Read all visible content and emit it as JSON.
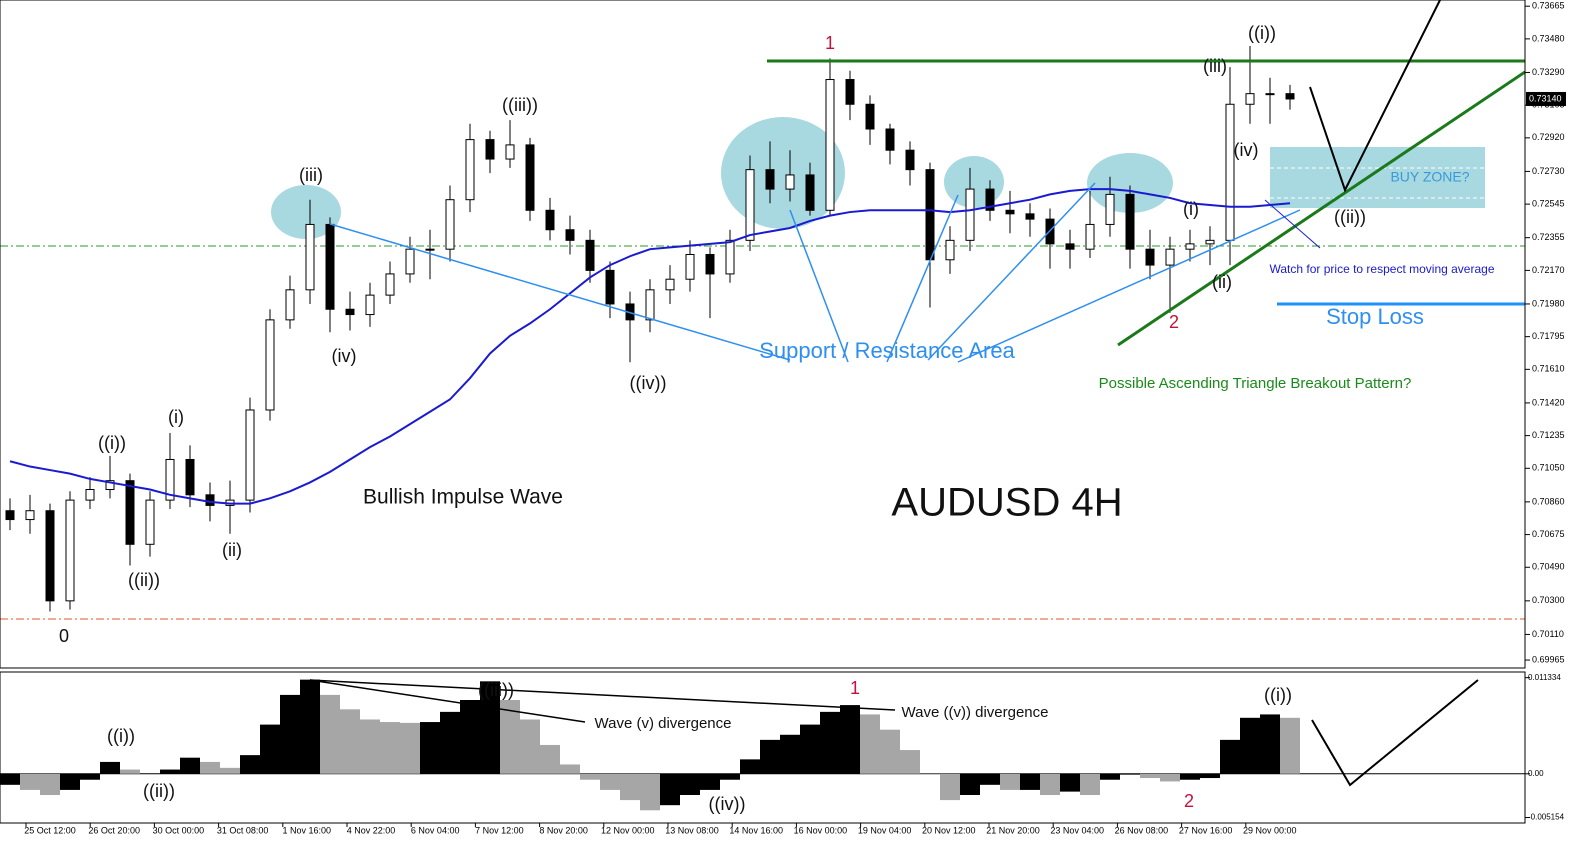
{
  "chart_data": [
    {
      "type": "candlestick",
      "title": "AUDUSD 4H",
      "open": [
        0.7081,
        0.7076,
        0.7081,
        0.703,
        0.7087,
        0.7093,
        0.7098,
        0.7062,
        0.7087,
        0.711,
        0.709,
        0.7084,
        0.7087,
        0.7138,
        0.7189,
        0.7206,
        0.7243,
        0.7195,
        0.7192,
        0.7203,
        0.7215,
        0.7229,
        0.7229,
        0.7257,
        0.7291,
        0.728,
        0.7288,
        0.7251,
        0.724,
        0.7234,
        0.7217,
        0.7198,
        0.7189,
        0.7206,
        0.7212,
        0.7226,
        0.7215,
        0.7234,
        0.7274,
        0.7263,
        0.7271,
        0.7251,
        0.7325,
        0.7311,
        0.7297,
        0.7285,
        0.7274,
        0.7223,
        0.7234,
        0.7263,
        0.7251,
        0.7249,
        0.7246,
        0.7232,
        0.7229,
        0.7243,
        0.726,
        0.7229,
        0.722,
        0.7229,
        0.7232,
        0.7234,
        0.7311,
        0.7317,
        0.7317
      ],
      "high": [
        0.7088,
        0.709,
        0.7085,
        0.7092,
        0.71,
        0.7112,
        0.7102,
        0.7092,
        0.7125,
        0.7118,
        0.7097,
        0.7098,
        0.7145,
        0.7195,
        0.7214,
        0.7257,
        0.7247,
        0.7205,
        0.721,
        0.7222,
        0.7236,
        0.724,
        0.7265,
        0.73,
        0.7296,
        0.7302,
        0.7292,
        0.7258,
        0.7248,
        0.724,
        0.7222,
        0.7205,
        0.7212,
        0.722,
        0.7234,
        0.723,
        0.724,
        0.7282,
        0.729,
        0.7285,
        0.7278,
        0.7337,
        0.733,
        0.7316,
        0.73,
        0.729,
        0.7278,
        0.7242,
        0.7275,
        0.7268,
        0.7262,
        0.7255,
        0.7252,
        0.724,
        0.7262,
        0.727,
        0.7265,
        0.724,
        0.7236,
        0.724,
        0.7242,
        0.7332,
        0.7344,
        0.7326,
        0.7322
      ],
      "low": [
        0.707,
        0.7068,
        0.7024,
        0.7025,
        0.7082,
        0.7088,
        0.705,
        0.7055,
        0.7082,
        0.7083,
        0.7075,
        0.7068,
        0.708,
        0.7132,
        0.7184,
        0.7198,
        0.7182,
        0.7183,
        0.7185,
        0.7198,
        0.721,
        0.7212,
        0.7222,
        0.725,
        0.7272,
        0.7275,
        0.7245,
        0.7234,
        0.7226,
        0.721,
        0.719,
        0.7165,
        0.7182,
        0.7198,
        0.7205,
        0.719,
        0.721,
        0.7228,
        0.7255,
        0.7256,
        0.7248,
        0.7248,
        0.7302,
        0.7288,
        0.7277,
        0.7265,
        0.7196,
        0.7215,
        0.7228,
        0.7245,
        0.7238,
        0.7236,
        0.7218,
        0.7218,
        0.7224,
        0.7236,
        0.7218,
        0.7212,
        0.7193,
        0.7222,
        0.722,
        0.722,
        0.73,
        0.73,
        0.7308
      ],
      "close": [
        0.7076,
        0.7081,
        0.703,
        0.7087,
        0.7093,
        0.7098,
        0.7062,
        0.7087,
        0.711,
        0.709,
        0.7084,
        0.7087,
        0.7138,
        0.7189,
        0.7206,
        0.7243,
        0.7195,
        0.7192,
        0.7203,
        0.7215,
        0.7229,
        0.7229,
        0.7257,
        0.7291,
        0.728,
        0.7288,
        0.7251,
        0.724,
        0.7234,
        0.7217,
        0.7198,
        0.7189,
        0.7206,
        0.7212,
        0.7226,
        0.7215,
        0.7234,
        0.7274,
        0.7263,
        0.7271,
        0.7251,
        0.7325,
        0.7311,
        0.7297,
        0.7285,
        0.7274,
        0.7223,
        0.7234,
        0.7263,
        0.7251,
        0.7249,
        0.7246,
        0.7232,
        0.7229,
        0.7243,
        0.726,
        0.7229,
        0.722,
        0.7229,
        0.7232,
        0.7234,
        0.7311,
        0.7317,
        0.7317,
        0.7314
      ],
      "up_color": "#ffffff",
      "down_color": "#000000",
      "moving_average": {
        "color": "#1a1ad0",
        "values": [
          0.7109,
          0.7106,
          0.7104,
          0.7102,
          0.7099,
          0.7097,
          0.7095,
          0.7093,
          0.709,
          0.7088,
          0.7086,
          0.7085,
          0.7085,
          0.7088,
          0.7092,
          0.7097,
          0.7103,
          0.711,
          0.7117,
          0.7123,
          0.713,
          0.7137,
          0.7144,
          0.7156,
          0.717,
          0.718,
          0.7187,
          0.7195,
          0.7204,
          0.7213,
          0.722,
          0.7225,
          0.7229,
          0.723,
          0.7231,
          0.7232,
          0.7233,
          0.7237,
          0.7239,
          0.7241,
          0.7245,
          0.7248,
          0.725,
          0.7251,
          0.7251,
          0.7251,
          0.7251,
          0.725,
          0.7251,
          0.7253,
          0.7255,
          0.7257,
          0.726,
          0.7262,
          0.7263,
          0.7263,
          0.7262,
          0.726,
          0.7258,
          0.7255,
          0.7254,
          0.7253,
          0.7253,
          0.7254,
          0.7255
        ]
      },
      "ylim": [
        0.6992,
        0.737
      ],
      "yticks": [
        0.73665,
        {
          "value": 0.7348,
          "label": "0.73480"
        },
        {
          "value": 0.7329,
          "label": "0.73290"
        },
        0.73105,
        {
          "value": 0.7292,
          "label": "0.72920"
        },
        {
          "value": 0.7273,
          "label": "0.72730"
        },
        0.72545,
        0.72355,
        {
          "value": 0.7217,
          "label": "0.72170"
        },
        {
          "value": 0.7198,
          "label": "0.71980"
        },
        0.71795,
        {
          "value": 0.7161,
          "label": "0.71610"
        },
        {
          "value": 0.7142,
          "label": "0.71420"
        },
        0.71235,
        {
          "value": 0.7105,
          "label": "0.71050"
        },
        {
          "value": 0.7086,
          "label": "0.70860"
        },
        0.70675,
        {
          "value": 0.7049,
          "label": "0.70490"
        },
        {
          "value": 0.703,
          "label": "0.70300"
        },
        {
          "value": 0.7011,
          "label": "0.70110"
        },
        0.69965
      ],
      "current_price": {
        "value": 0.7314,
        "label": "0.73140"
      },
      "annotations": [
        "0",
        "((i))",
        "((ii))",
        "(i)",
        "(ii)",
        "(iii)",
        "(iv)",
        "((iii))",
        "((iv))",
        "1",
        "(iii)",
        "((i))",
        "(iv)",
        "(i)",
        "(ii)",
        "((ii))",
        "2",
        "Support / Resistance Area",
        "Possible Ascending Triangle Breakout Pattern?",
        "Watch for price to respect moving average",
        "BUY ZONE?",
        "Stop Loss",
        "Bullish Impulse Wave"
      ]
    },
    {
      "type": "bar",
      "values": [
        -0.0013,
        -0.0019,
        -0.0025,
        -0.0019,
        -0.0007,
        0.0014,
        0.0005,
        0,
        0.0005,
        0.0019,
        0.0014,
        0.0007,
        0.0022,
        0.0058,
        0.0093,
        0.0111,
        0.0093,
        0.0076,
        0.0064,
        0.0061,
        0.006,
        0.0061,
        0.0073,
        0.0087,
        0.0109,
        0.0087,
        0.0064,
        0.0034,
        0.0011,
        -0.0007,
        -0.0019,
        -0.0031,
        -0.0043,
        -0.0037,
        -0.0025,
        -0.0019,
        -0.0007,
        0.0017,
        0.004,
        0.0046,
        0.0058,
        0.0073,
        0.0081,
        0.007,
        0.0052,
        0.0028,
        -0.0001,
        -0.0031,
        -0.0025,
        -0.0013,
        -0.0019,
        -0.0019,
        -0.0025,
        -0.0021,
        -0.0025,
        -0.0007,
        -0.0001,
        -0.0005,
        -0.0009,
        -0.0007,
        -0.0005,
        0.004,
        0.0066,
        0.007,
        0.0066
      ],
      "up_color": "#000000",
      "down_color": "#a6a6a6",
      "ylim": [
        -0.0058,
        0.012
      ],
      "yticks": [
        0.011334,
        {
          "value": 0,
          "label": "0.00"
        },
        -0.005154
      ],
      "xtick_labels": [
        "25 Oct 12:00",
        "26 Oct 20:00",
        "30 Oct 00:00",
        "31 Oct 08:00",
        "1 Nov 16:00",
        "4 Nov 22:00",
        "6 Nov 04:00",
        "7 Nov 12:00",
        "8 Nov 20:00",
        "12 Nov 00:00",
        "13 Nov 08:00",
        "14 Nov 16:00",
        "16 Nov 00:00",
        "19 Nov 04:00",
        "20 Nov 12:00",
        "21 Nov 20:00",
        "23 Nov 04:00",
        "26 Nov 08:00",
        "27 Nov 16:00",
        "29 Nov 00:00"
      ],
      "annotations": [
        "((i))",
        "((ii))",
        "((iii))",
        "((iv))",
        "1",
        "Wave (v) divergence",
        "Wave ((v)) divergence",
        "((i))",
        "2"
      ]
    }
  ]
}
